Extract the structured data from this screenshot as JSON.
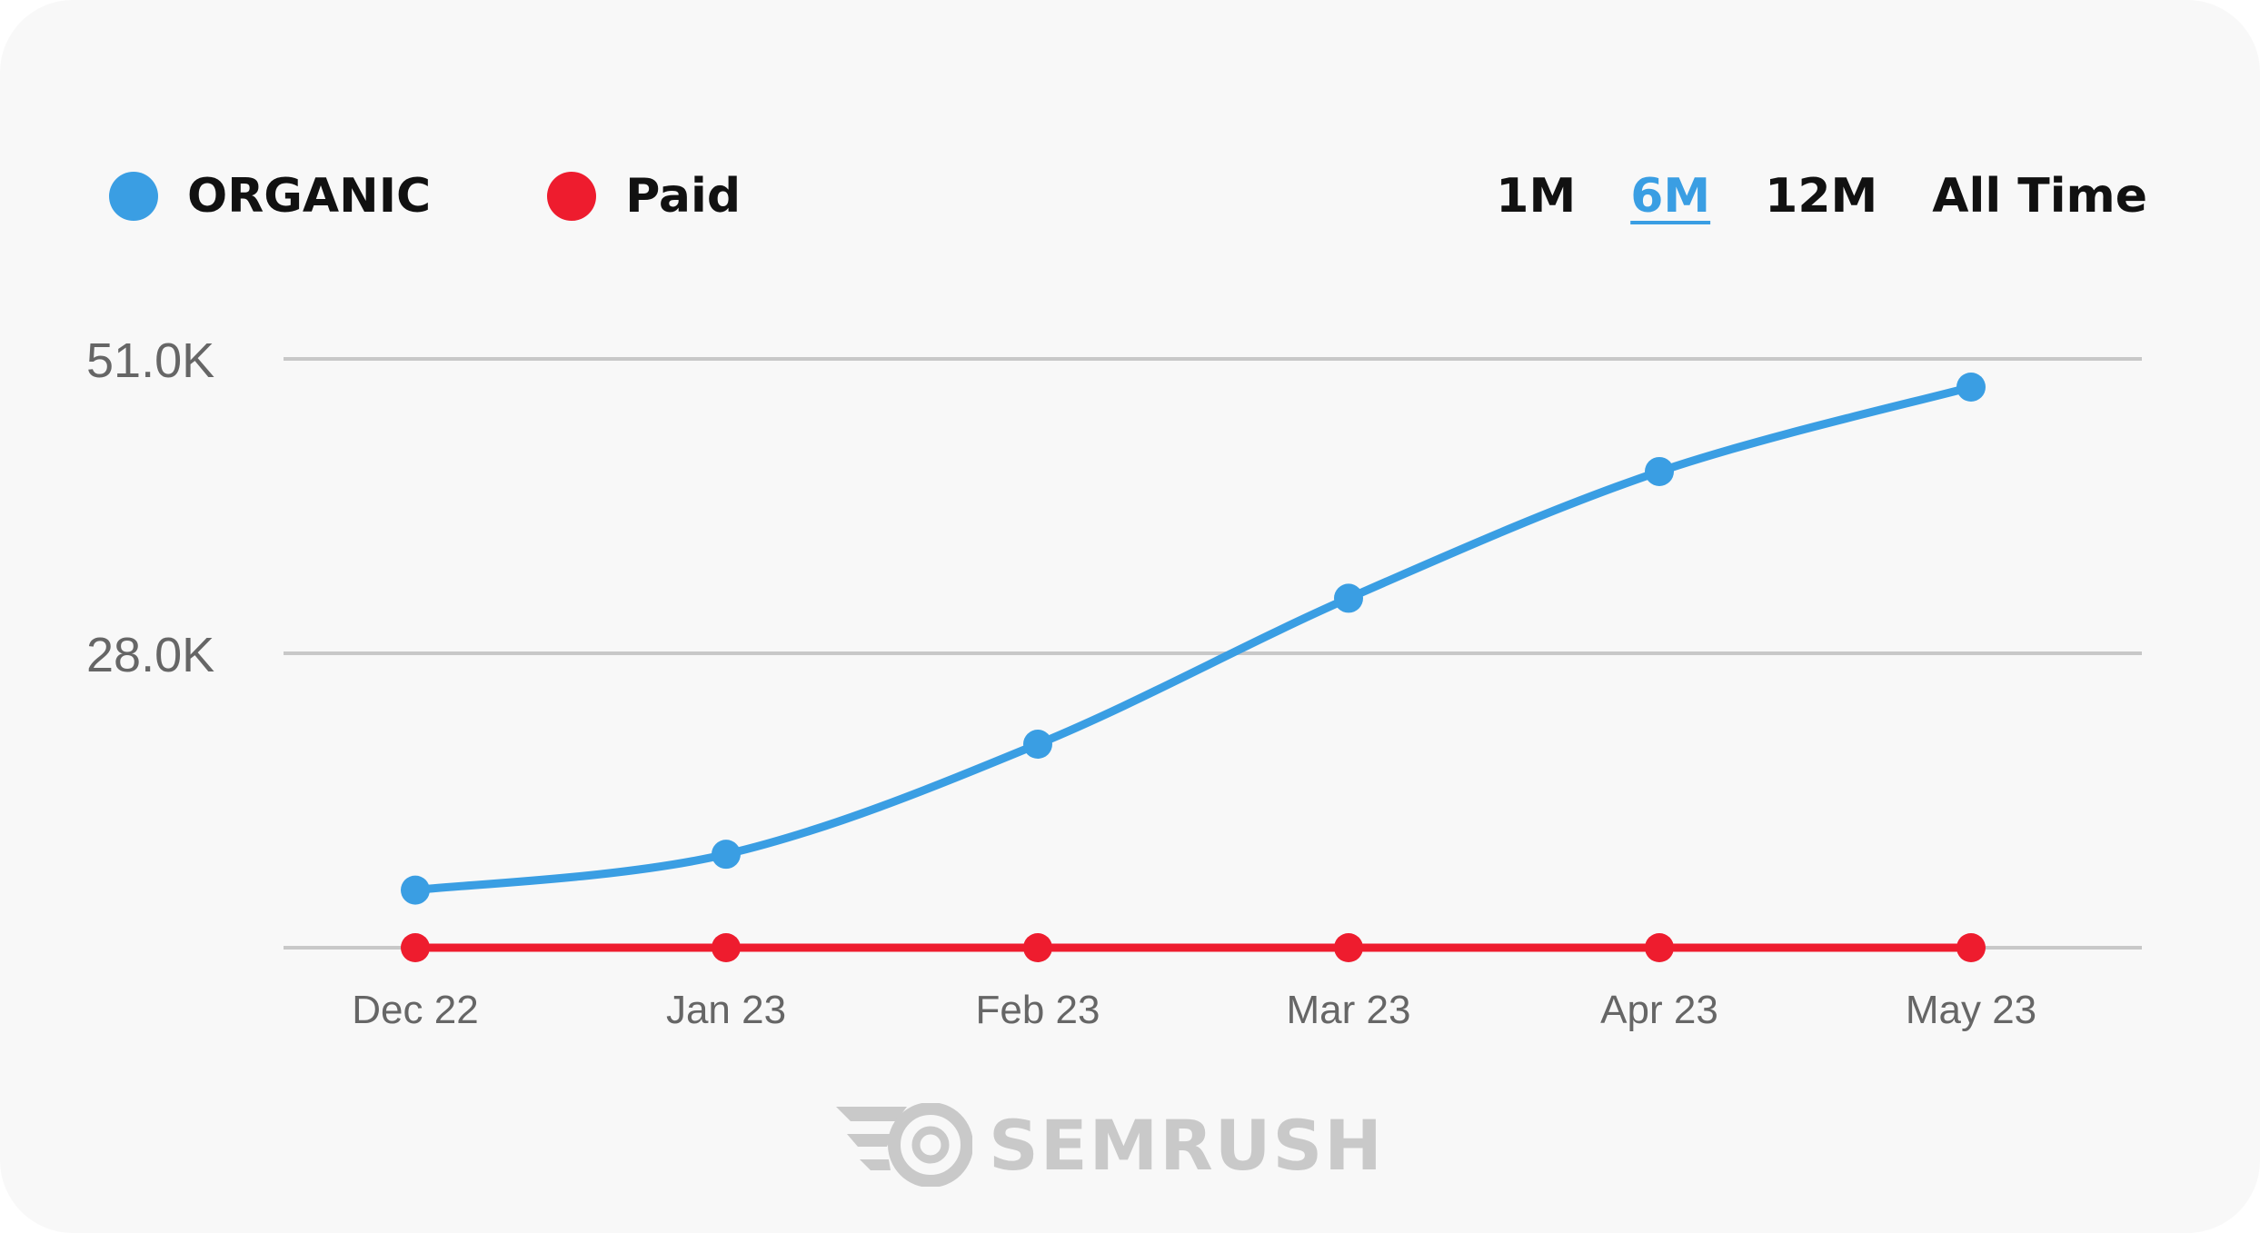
{
  "legend": [
    {
      "label": "ORGANIC",
      "color": "#3a9ee3"
    },
    {
      "label": "Paid",
      "color": "#ee1c2e"
    }
  ],
  "ranges": [
    {
      "label": "1M",
      "active": false
    },
    {
      "label": "6M",
      "active": true
    },
    {
      "label": "12M",
      "active": false
    },
    {
      "label": "All Time",
      "active": false
    }
  ],
  "brand": {
    "name": "SEMRUSH",
    "icon": "semrush-fireball-icon"
  },
  "chart_data": {
    "type": "line",
    "categories": [
      "Dec 22",
      "Jan 23",
      "Feb 23",
      "Mar 23",
      "Apr 23",
      "May 23"
    ],
    "yticks": [
      {
        "value": 51000,
        "label": "51.0K"
      },
      {
        "value": 28000,
        "label": "28.0K"
      },
      {
        "value": 5000,
        "label": ""
      }
    ],
    "ylim": [
      5000,
      51000
    ],
    "grid": true,
    "legend_position": "top-left",
    "series": [
      {
        "name": "ORGANIC",
        "color": "#3a9ee3",
        "values": [
          9500,
          12300,
          20900,
          32300,
          42200,
          48800
        ]
      },
      {
        "name": "Paid",
        "color": "#ee1c2e",
        "values": [
          5000,
          5000,
          5000,
          5000,
          5000,
          5000
        ]
      }
    ]
  }
}
